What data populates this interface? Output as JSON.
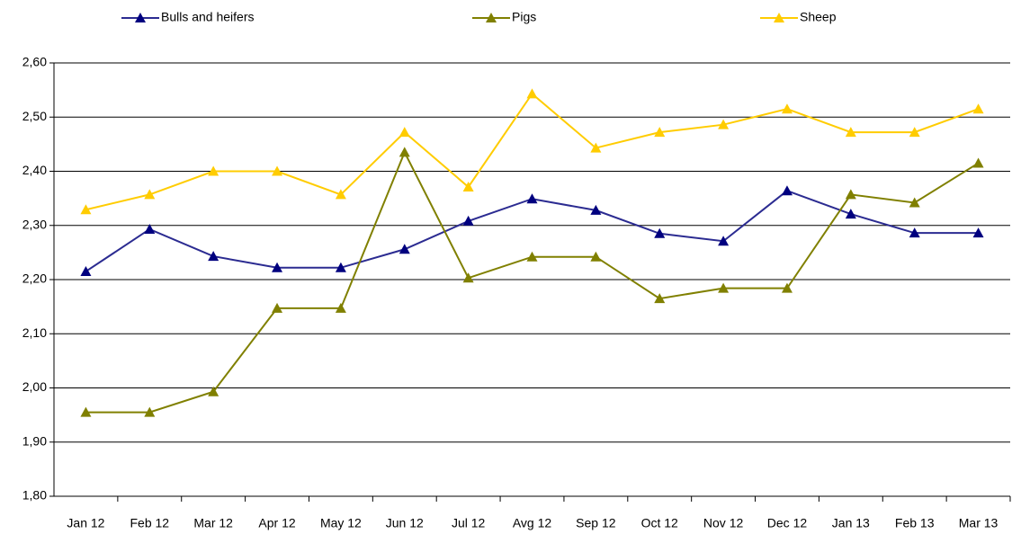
{
  "chart_data": {
    "type": "line",
    "categories": [
      "Jan 12",
      "Feb 12",
      "Mar 12",
      "Apr 12",
      "May 12",
      "Jun 12",
      "Jul 12",
      "Avg 12",
      "Sep 12",
      "Oct 12",
      "Nov 12",
      "Dec 12",
      "Jan 13",
      "Feb 13",
      "Mar 13"
    ],
    "series": [
      {
        "name": "Bulls and heifers",
        "color": "#2b2b91",
        "values": [
          2.215,
          2.293,
          2.243,
          2.222,
          2.222,
          2.256,
          2.308,
          2.349,
          2.328,
          2.285,
          2.271,
          2.364,
          2.321,
          2.286,
          2.286
        ]
      },
      {
        "name": "Pigs",
        "color": "#808000",
        "values": [
          1.955,
          1.955,
          1.993,
          2.147,
          2.147,
          2.435,
          2.203,
          2.242,
          2.242,
          2.165,
          2.184,
          2.184,
          2.357,
          2.342,
          2.415
        ]
      },
      {
        "name": "Sheep",
        "color": "#ffcc00",
        "values": [
          2.329,
          2.357,
          2.4,
          2.4,
          2.357,
          2.472,
          2.371,
          2.543,
          2.443,
          2.472,
          2.486,
          2.515,
          2.472,
          2.472,
          2.515
        ]
      }
    ],
    "ylim": [
      1.8,
      2.6
    ],
    "yticks": [
      {
        "value": 1.8,
        "label": "1,80"
      },
      {
        "value": 1.9,
        "label": "1,90"
      },
      {
        "value": 2.0,
        "label": "2,00"
      },
      {
        "value": 2.1,
        "label": "2,10"
      },
      {
        "value": 2.2,
        "label": "2,20"
      },
      {
        "value": 2.3,
        "label": "2,30"
      },
      {
        "value": 2.4,
        "label": "2,40"
      },
      {
        "value": 2.5,
        "label": "2,50"
      },
      {
        "value": 2.6,
        "label": "2,60"
      }
    ],
    "grid": true,
    "legend": "top"
  }
}
